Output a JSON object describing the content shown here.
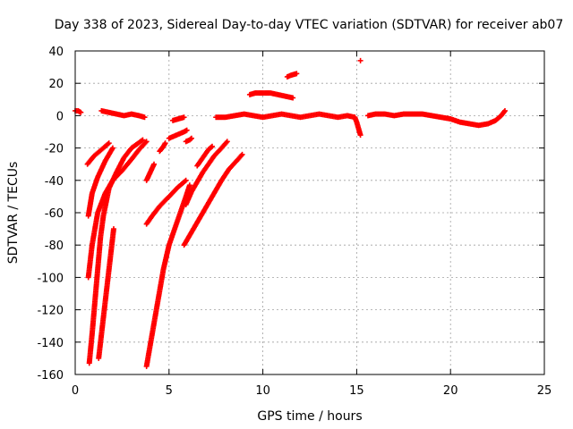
{
  "chart_data": {
    "type": "scatter",
    "title": "Day 338 of 2023, Sidereal Day-to-day VTEC variation (SDTVAR) for receiver ab07",
    "xlabel": "GPS time / hours",
    "ylabel": "SDTVAR / TECUs",
    "xlim": [
      0,
      25
    ],
    "ylim": [
      -160,
      40
    ],
    "xticks": [
      0,
      5,
      10,
      15,
      20,
      25
    ],
    "yticks": [
      -160,
      -140,
      -120,
      -100,
      -80,
      -60,
      -40,
      -20,
      0,
      20,
      40
    ],
    "grid": true,
    "marker": "+",
    "series_color": "#ff0000",
    "segments": [
      {
        "name": "near-zero-1",
        "points": [
          [
            0.0,
            3
          ],
          [
            0.15,
            3
          ],
          [
            0.3,
            2
          ]
        ]
      },
      {
        "name": "near-zero-2",
        "points": [
          [
            1.4,
            3
          ],
          [
            1.8,
            2
          ],
          [
            2.2,
            1
          ],
          [
            2.6,
            0
          ],
          [
            3.0,
            1
          ],
          [
            3.4,
            0
          ],
          [
            3.7,
            -1
          ]
        ]
      },
      {
        "name": "near-zero-3",
        "points": [
          [
            5.2,
            -3
          ],
          [
            5.5,
            -2
          ],
          [
            5.8,
            -1
          ]
        ]
      },
      {
        "name": "near-zero-4",
        "points": [
          [
            7.5,
            -1
          ],
          [
            8.0,
            -1
          ],
          [
            8.5,
            0
          ],
          [
            9.0,
            1
          ],
          [
            9.5,
            0
          ],
          [
            10.0,
            -1
          ],
          [
            10.5,
            0
          ],
          [
            11.0,
            1
          ],
          [
            11.5,
            0
          ],
          [
            12.0,
            -1
          ],
          [
            12.5,
            0
          ],
          [
            13.0,
            1
          ],
          [
            13.5,
            0
          ],
          [
            14.0,
            -1
          ],
          [
            14.5,
            0
          ],
          [
            14.9,
            -1
          ]
        ]
      },
      {
        "name": "near-zero-5",
        "points": [
          [
            15.6,
            0
          ],
          [
            16.0,
            1
          ],
          [
            16.5,
            1
          ],
          [
            17.0,
            0
          ],
          [
            17.5,
            1
          ],
          [
            18.0,
            1
          ],
          [
            18.5,
            1
          ],
          [
            19.0,
            0
          ],
          [
            19.5,
            -1
          ],
          [
            20.0,
            -2
          ],
          [
            20.5,
            -4
          ],
          [
            21.0,
            -5
          ],
          [
            21.5,
            -6
          ],
          [
            22.0,
            -5
          ],
          [
            22.4,
            -3
          ],
          [
            22.7,
            0
          ],
          [
            22.9,
            3
          ]
        ]
      },
      {
        "name": "hump-10",
        "points": [
          [
            9.3,
            13
          ],
          [
            9.6,
            14
          ],
          [
            10.0,
            14
          ],
          [
            10.4,
            14
          ],
          [
            10.8,
            13
          ],
          [
            11.2,
            12
          ],
          [
            11.6,
            11
          ]
        ]
      },
      {
        "name": "hump-12",
        "points": [
          [
            11.3,
            24
          ],
          [
            11.5,
            25
          ],
          [
            11.8,
            26
          ]
        ]
      },
      {
        "name": "outlier",
        "points": [
          [
            15.2,
            34
          ]
        ]
      },
      {
        "name": "dip-15",
        "points": [
          [
            14.9,
            -1
          ],
          [
            15.0,
            -4
          ],
          [
            15.1,
            -8
          ],
          [
            15.2,
            -12
          ]
        ]
      },
      {
        "name": "arc-1",
        "points": [
          [
            0.7,
            -100
          ],
          [
            0.9,
            -80
          ],
          [
            1.2,
            -60
          ],
          [
            1.6,
            -48
          ],
          [
            2.0,
            -40
          ],
          [
            2.5,
            -34
          ],
          [
            3.0,
            -27
          ],
          [
            3.4,
            -21
          ],
          [
            3.8,
            -16
          ]
        ]
      },
      {
        "name": "arc-2",
        "points": [
          [
            0.75,
            -153
          ],
          [
            0.9,
            -135
          ],
          [
            1.05,
            -115
          ],
          [
            1.2,
            -95
          ],
          [
            1.35,
            -75
          ],
          [
            1.5,
            -62
          ],
          [
            1.8,
            -45
          ],
          [
            2.2,
            -35
          ],
          [
            2.6,
            -26
          ],
          [
            3.0,
            -20
          ],
          [
            3.6,
            -15
          ]
        ]
      },
      {
        "name": "arc-3",
        "points": [
          [
            0.7,
            -62
          ],
          [
            0.9,
            -48
          ],
          [
            1.2,
            -38
          ],
          [
            1.6,
            -28
          ],
          [
            2.0,
            -20
          ]
        ]
      },
      {
        "name": "arc-4",
        "points": [
          [
            0.65,
            -30
          ],
          [
            1.0,
            -25
          ],
          [
            1.4,
            -21
          ],
          [
            1.8,
            -17
          ]
        ]
      },
      {
        "name": "arc-5",
        "points": [
          [
            1.25,
            -150
          ],
          [
            1.45,
            -130
          ],
          [
            1.65,
            -110
          ],
          [
            1.85,
            -90
          ],
          [
            2.05,
            -70
          ]
        ]
      },
      {
        "name": "arc-6",
        "points": [
          [
            3.8,
            -155
          ],
          [
            4.1,
            -135
          ],
          [
            4.4,
            -115
          ],
          [
            4.7,
            -95
          ],
          [
            5.0,
            -80
          ],
          [
            5.3,
            -70
          ],
          [
            5.6,
            -60
          ],
          [
            5.9,
            -50
          ],
          [
            6.1,
            -43
          ]
        ]
      },
      {
        "name": "arc-7",
        "points": [
          [
            3.8,
            -67
          ],
          [
            4.1,
            -62
          ],
          [
            4.5,
            -56
          ],
          [
            5.0,
            -50
          ],
          [
            5.5,
            -44
          ],
          [
            5.9,
            -40
          ]
        ]
      },
      {
        "name": "arc-8",
        "points": [
          [
            5.8,
            -80
          ],
          [
            6.2,
            -72
          ],
          [
            6.6,
            -64
          ],
          [
            7.0,
            -56
          ],
          [
            7.4,
            -48
          ],
          [
            7.8,
            -40
          ],
          [
            8.2,
            -33
          ],
          [
            8.6,
            -28
          ],
          [
            8.9,
            -24
          ]
        ]
      },
      {
        "name": "arc-9",
        "points": [
          [
            5.9,
            -55
          ],
          [
            6.2,
            -47
          ],
          [
            6.5,
            -41
          ],
          [
            6.8,
            -35
          ],
          [
            7.1,
            -30
          ],
          [
            7.4,
            -25
          ],
          [
            7.8,
            -20
          ],
          [
            8.1,
            -16
          ]
        ]
      },
      {
        "name": "arc-10",
        "points": [
          [
            3.8,
            -40
          ],
          [
            4.0,
            -35
          ],
          [
            4.2,
            -30
          ]
        ]
      },
      {
        "name": "arc-11",
        "points": [
          [
            4.5,
            -22
          ],
          [
            4.7,
            -19
          ],
          [
            4.8,
            -17
          ]
        ]
      },
      {
        "name": "arc-12",
        "points": [
          [
            5.0,
            -14
          ],
          [
            5.4,
            -12
          ],
          [
            5.8,
            -10
          ],
          [
            5.95,
            -9
          ]
        ]
      },
      {
        "name": "arc-13",
        "points": [
          [
            5.9,
            -16
          ],
          [
            6.1,
            -15
          ],
          [
            6.2,
            -14
          ]
        ]
      },
      {
        "name": "arc-14",
        "points": [
          [
            6.5,
            -31
          ],
          [
            6.8,
            -26
          ],
          [
            7.1,
            -21
          ],
          [
            7.3,
            -19
          ]
        ]
      }
    ]
  }
}
